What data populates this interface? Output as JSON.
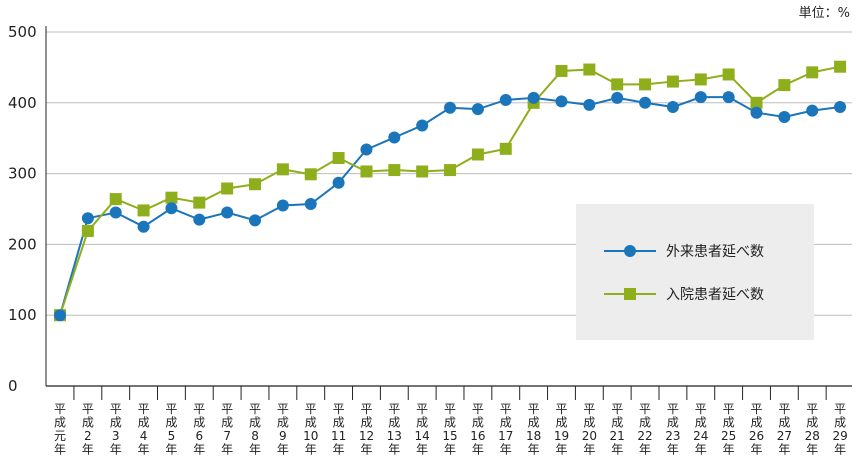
{
  "unit_label": "単位：%",
  "chart_data": {
    "type": "line",
    "title": "",
    "xlabel": "",
    "ylabel": "",
    "ylim": [
      0,
      500
    ],
    "yticks": [
      0,
      100,
      200,
      300,
      400,
      500
    ],
    "grid": "horizontal",
    "legend_position": "middle-right",
    "categories": [
      "平成元年",
      "平成2年",
      "平成3年",
      "平成4年",
      "平成5年",
      "平成6年",
      "平成7年",
      "平成8年",
      "平成9年",
      "平成10年",
      "平成11年",
      "平成12年",
      "平成13年",
      "平成14年",
      "平成15年",
      "平成16年",
      "平成17年",
      "平成18年",
      "平成19年",
      "平成20年",
      "平成21年",
      "平成22年",
      "平成23年",
      "平成24年",
      "平成25年",
      "平成26年",
      "平成27年",
      "平成28年",
      "平成29年"
    ],
    "series": [
      {
        "name": "外来患者延べ数",
        "color": "#1b75bb",
        "marker": "circle",
        "values": [
          100,
          237,
          245,
          225,
          251,
          235,
          245,
          234,
          255,
          257,
          287,
          334,
          351,
          368,
          393,
          391,
          404,
          407,
          402,
          397,
          407,
          400,
          394,
          408,
          408,
          386,
          380,
          389,
          394
        ]
      },
      {
        "name": "入院患者延べ数",
        "color": "#8fae1b",
        "marker": "square",
        "values": [
          100,
          219,
          264,
          248,
          266,
          259,
          279,
          285,
          306,
          299,
          322,
          303,
          305,
          303,
          305,
          327,
          335,
          400,
          445,
          447,
          426,
          426,
          430,
          433,
          440,
          400,
          425,
          443,
          451
        ]
      }
    ]
  }
}
